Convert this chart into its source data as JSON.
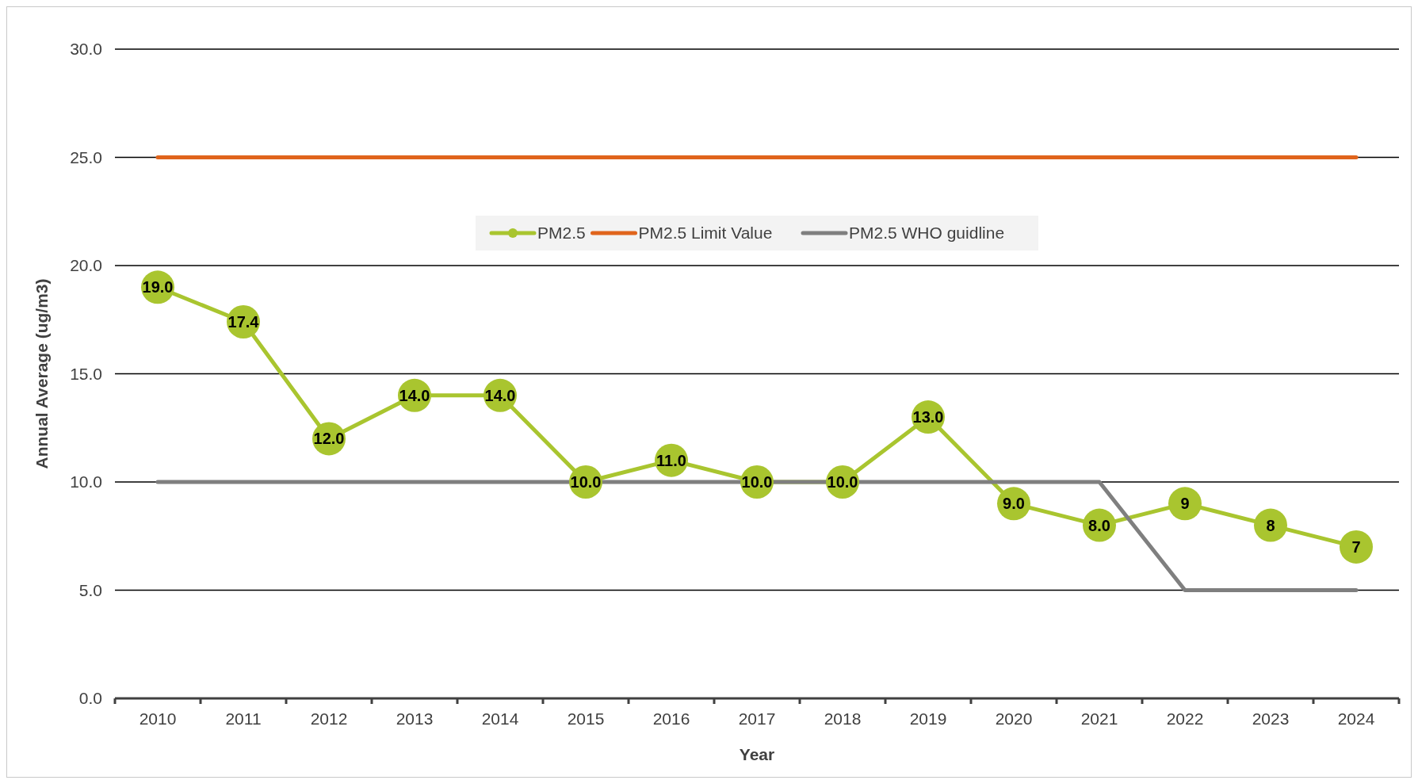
{
  "chart_data": {
    "type": "line",
    "xlabel": "Year",
    "ylabel": "Annual Average (ug/m3)",
    "categories": [
      "2010",
      "2011",
      "2012",
      "2013",
      "2014",
      "2015",
      "2016",
      "2017",
      "2018",
      "2019",
      "2020",
      "2021",
      "2022",
      "2023",
      "2024"
    ],
    "series": [
      {
        "name": "PM2.5",
        "color": "#a9c52f",
        "marker": "circle",
        "values": [
          19,
          17.4,
          12,
          14,
          14,
          10,
          11,
          10,
          10,
          13,
          9,
          8,
          9,
          8,
          7
        ],
        "value_labels": [
          "19.0",
          "17.4",
          "12.0",
          "14.0",
          "14.0",
          "10.0",
          "11.0",
          "10.0",
          "10.0",
          "13.0",
          "9.0",
          "8.0",
          "9",
          "8",
          "7"
        ]
      },
      {
        "name": "PM2.5 Limit Value",
        "color": "#e0641c",
        "marker": "none",
        "values": [
          25,
          25,
          25,
          25,
          25,
          25,
          25,
          25,
          25,
          25,
          25,
          25,
          25,
          25,
          25
        ]
      },
      {
        "name": "PM2.5 WHO guidline",
        "color": "#7f7f7f",
        "marker": "none",
        "values": [
          10,
          10,
          10,
          10,
          10,
          10,
          10,
          10,
          10,
          10,
          10,
          10,
          5,
          5,
          5
        ]
      }
    ],
    "ylim": [
      0,
      30
    ],
    "yticks": [
      {
        "value": 0,
        "label": "0.0"
      },
      {
        "value": 5,
        "label": "5.0"
      },
      {
        "value": 10,
        "label": "10.0"
      },
      {
        "value": 15,
        "label": "15.0"
      },
      {
        "value": 20,
        "label": "20.0"
      },
      {
        "value": 25,
        "label": "25.0"
      },
      {
        "value": 30,
        "label": "30.0"
      }
    ],
    "grid": "y",
    "legend": "top",
    "line_style": "solid"
  }
}
